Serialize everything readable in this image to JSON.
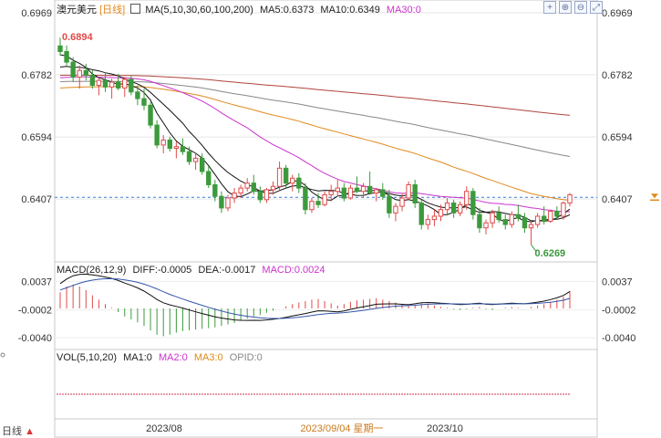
{
  "header": {
    "instrument": "澳元美元",
    "period": "[日线]",
    "ma_label": "MA(5,10,30,60,100,200)",
    "ma5": "MA5:0.6373",
    "ma10": "MA10:0.6349",
    "ma30": "MA30:0"
  },
  "toolbar": {
    "icons": [
      "crosshair-icon",
      "zoom-in-icon",
      "zoom-out-icon",
      "expand-icon"
    ]
  },
  "macd": {
    "label": "MACD(26,12,9)",
    "diff": "DIFF:-0.0005",
    "dea": "DEA:-0.0017",
    "macd": "MACD:0.0024"
  },
  "vol": {
    "label": "VOL(5,10,20)",
    "ma1": "MA1:0",
    "ma2": "MA2:0",
    "ma3": "MA3:0",
    "opid": "OPID:0"
  },
  "footer": {
    "period": "日线",
    "arrow": "▲"
  },
  "colors": {
    "up": "#e04a4a",
    "down": "#3c9a3c",
    "ma5": "#111111",
    "ma10": "#111111",
    "ma30": "#cc33cc",
    "ma60": "#e08a1e",
    "ma100": "#888888",
    "ma200": "#b0443c"
  },
  "chart_data": {
    "type": "candlestick",
    "price_ticks": [
      "0.6969",
      "0.6782",
      "0.6594",
      "0.6407"
    ],
    "price_range": [
      0.622,
      0.6969
    ],
    "annotations": {
      "high": "0.6894",
      "low": "0.6269",
      "current_level": 0.6412
    },
    "x_labels": [
      "2023/08",
      "2023/09/04 星期一",
      "2023/10"
    ],
    "macd_ticks": [
      "0.0037",
      "-0.0002",
      "-0.0040"
    ],
    "macd_range": [
      -0.0055,
      0.0045
    ],
    "candles": [
      [
        0.6869,
        0.6894,
        0.684,
        0.6852
      ],
      [
        0.6852,
        0.687,
        0.681,
        0.682
      ],
      [
        0.682,
        0.6835,
        0.676,
        0.6775
      ],
      [
        0.6775,
        0.681,
        0.674,
        0.6795
      ],
      [
        0.6795,
        0.6815,
        0.6765,
        0.678
      ],
      [
        0.678,
        0.6795,
        0.674,
        0.675
      ],
      [
        0.675,
        0.6775,
        0.672,
        0.6765
      ],
      [
        0.6765,
        0.679,
        0.673,
        0.6745
      ],
      [
        0.6745,
        0.677,
        0.671,
        0.676
      ],
      [
        0.676,
        0.6785,
        0.6735,
        0.6742
      ],
      [
        0.6742,
        0.6775,
        0.6715,
        0.6768
      ],
      [
        0.6768,
        0.678,
        0.672,
        0.673
      ],
      [
        0.673,
        0.675,
        0.669,
        0.671
      ],
      [
        0.671,
        0.674,
        0.6675,
        0.669
      ],
      [
        0.669,
        0.67,
        0.662,
        0.663
      ],
      [
        0.663,
        0.6645,
        0.656,
        0.657
      ],
      [
        0.657,
        0.66,
        0.6545,
        0.6585
      ],
      [
        0.6585,
        0.6595,
        0.655,
        0.656
      ],
      [
        0.656,
        0.658,
        0.653,
        0.6565
      ],
      [
        0.6565,
        0.659,
        0.654,
        0.655
      ],
      [
        0.655,
        0.6565,
        0.651,
        0.652
      ],
      [
        0.652,
        0.6545,
        0.6495,
        0.653
      ],
      [
        0.653,
        0.6545,
        0.648,
        0.649
      ],
      [
        0.649,
        0.6505,
        0.644,
        0.645
      ],
      [
        0.645,
        0.6465,
        0.64,
        0.6415
      ],
      [
        0.6415,
        0.643,
        0.6365,
        0.638
      ],
      [
        0.638,
        0.642,
        0.637,
        0.641
      ],
      [
        0.641,
        0.644,
        0.6395,
        0.6425
      ],
      [
        0.6425,
        0.645,
        0.641,
        0.644
      ],
      [
        0.644,
        0.647,
        0.643,
        0.6455
      ],
      [
        0.6455,
        0.648,
        0.642,
        0.643
      ],
      [
        0.643,
        0.6445,
        0.6395,
        0.6405
      ],
      [
        0.6405,
        0.644,
        0.6395,
        0.6435
      ],
      [
        0.6435,
        0.646,
        0.642,
        0.6445
      ],
      [
        0.6445,
        0.652,
        0.6435,
        0.65
      ],
      [
        0.65,
        0.651,
        0.644,
        0.6455
      ],
      [
        0.6455,
        0.648,
        0.643,
        0.647
      ],
      [
        0.647,
        0.6485,
        0.6425,
        0.644
      ],
      [
        0.644,
        0.6455,
        0.636,
        0.6375
      ],
      [
        0.6375,
        0.641,
        0.6365,
        0.64
      ],
      [
        0.64,
        0.6425,
        0.638,
        0.639
      ],
      [
        0.639,
        0.643,
        0.6385,
        0.642
      ],
      [
        0.642,
        0.645,
        0.64,
        0.643
      ],
      [
        0.643,
        0.6465,
        0.6415,
        0.644
      ],
      [
        0.644,
        0.6455,
        0.64,
        0.641
      ],
      [
        0.641,
        0.645,
        0.6405,
        0.644
      ],
      [
        0.644,
        0.6475,
        0.6425,
        0.643
      ],
      [
        0.643,
        0.6455,
        0.641,
        0.6445
      ],
      [
        0.6445,
        0.649,
        0.643,
        0.6425
      ],
      [
        0.6425,
        0.644,
        0.64,
        0.6435
      ],
      [
        0.6435,
        0.6455,
        0.6405,
        0.6415
      ],
      [
        0.6415,
        0.6435,
        0.635,
        0.6365
      ],
      [
        0.6365,
        0.6395,
        0.634,
        0.6385
      ],
      [
        0.6385,
        0.6425,
        0.637,
        0.641
      ],
      [
        0.641,
        0.646,
        0.6405,
        0.645
      ],
      [
        0.645,
        0.6465,
        0.638,
        0.6395
      ],
      [
        0.6395,
        0.6405,
        0.6315,
        0.633
      ],
      [
        0.633,
        0.636,
        0.6315,
        0.6345
      ],
      [
        0.6345,
        0.6375,
        0.6325,
        0.6355
      ],
      [
        0.6355,
        0.639,
        0.634,
        0.6375
      ],
      [
        0.6375,
        0.641,
        0.636,
        0.6395
      ],
      [
        0.6395,
        0.6405,
        0.635,
        0.6365
      ],
      [
        0.6365,
        0.64,
        0.6355,
        0.639
      ],
      [
        0.639,
        0.6445,
        0.6375,
        0.643
      ],
      [
        0.643,
        0.644,
        0.6345,
        0.636
      ],
      [
        0.636,
        0.638,
        0.6305,
        0.632
      ],
      [
        0.632,
        0.6345,
        0.63,
        0.6335
      ],
      [
        0.6335,
        0.6375,
        0.632,
        0.6365
      ],
      [
        0.6365,
        0.6385,
        0.6335,
        0.6345
      ],
      [
        0.6345,
        0.636,
        0.6315,
        0.633
      ],
      [
        0.633,
        0.637,
        0.632,
        0.636
      ],
      [
        0.636,
        0.639,
        0.634,
        0.635
      ],
      [
        0.635,
        0.6365,
        0.6305,
        0.632
      ],
      [
        0.632,
        0.634,
        0.6269,
        0.633
      ],
      [
        0.633,
        0.6365,
        0.632,
        0.6355
      ],
      [
        0.6355,
        0.6385,
        0.633,
        0.634
      ],
      [
        0.634,
        0.6375,
        0.6335,
        0.637
      ],
      [
        0.637,
        0.6385,
        0.6345,
        0.6355
      ],
      [
        0.6355,
        0.64,
        0.6345,
        0.6395
      ],
      [
        0.6395,
        0.6425,
        0.6385,
        0.642
      ]
    ],
    "macd_bars": [
      0.0022,
      0.003,
      0.0033,
      0.003,
      0.0025,
      0.0018,
      0.0012,
      0.0006,
      0.0001,
      -0.0005,
      -0.0011,
      -0.0015,
      -0.0019,
      -0.0024,
      -0.003,
      -0.0036,
      -0.0038,
      -0.0036,
      -0.0033,
      -0.0031,
      -0.003,
      -0.0029,
      -0.0028,
      -0.0027,
      -0.0026,
      -0.0024,
      -0.0022,
      -0.002,
      -0.0017,
      -0.0014,
      -0.0011,
      -0.0009,
      -0.0006,
      -0.0003,
      0.0,
      0.0003,
      0.0006,
      0.0008,
      0.001,
      0.0012,
      0.0013,
      0.001,
      0.0007,
      0.0004,
      0.0006,
      0.0009,
      0.0011,
      0.0012,
      0.0013,
      0.0014,
      0.0012,
      0.001,
      0.0008,
      0.0005,
      0.0003,
      0.0005,
      0.0007,
      0.0006,
      0.0004,
      0.0002,
      0.0001,
      -0.0001,
      -0.0002,
      -0.0001,
      0.0001,
      0.0002,
      -0.0001,
      -0.0002,
      0.0,
      0.0001,
      0.0002,
      0.0001,
      0.0,
      0.0002,
      0.0004,
      0.0006,
      0.0009,
      0.0012,
      0.0016,
      0.0024
    ]
  }
}
